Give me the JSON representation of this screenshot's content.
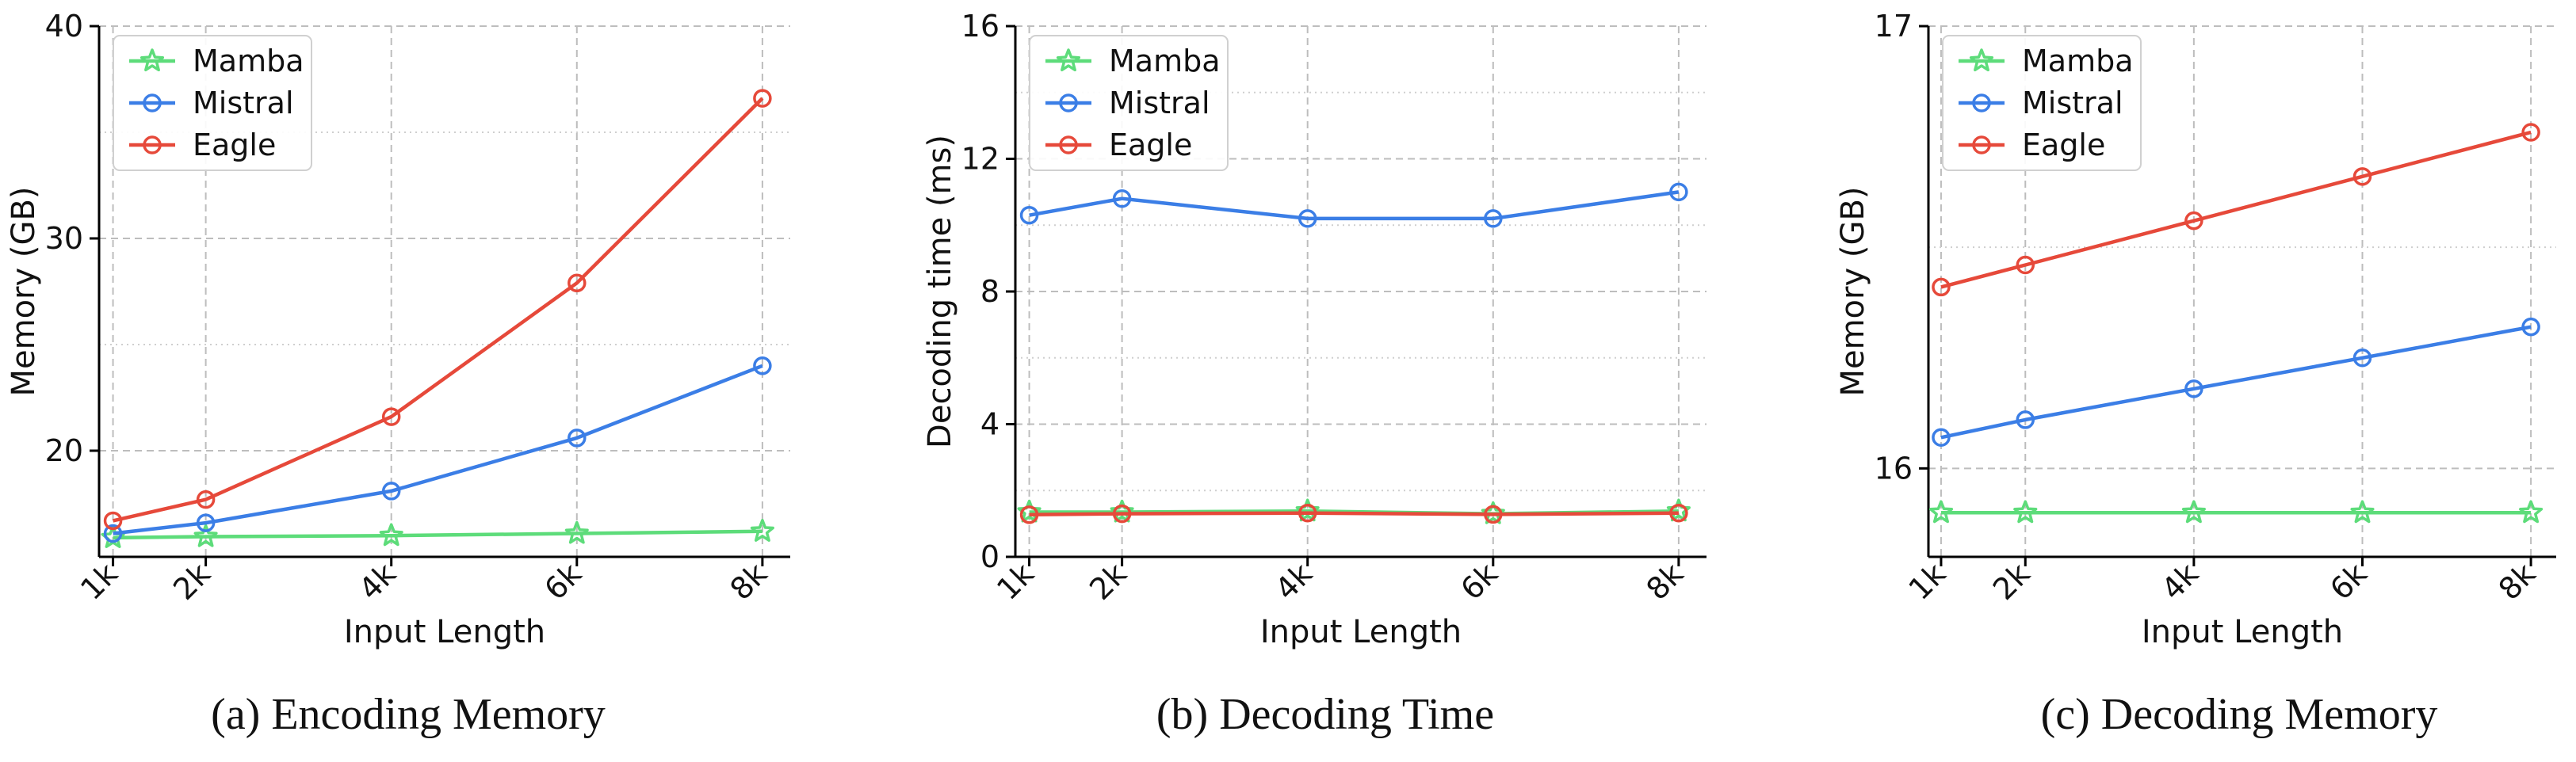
{
  "colors": {
    "Mamba": "#5ddc7a",
    "Mistral": "#3b7ee6",
    "Eagle": "#e6493a"
  },
  "chart_data": [
    {
      "type": "line",
      "caption": "(a) Encoding Memory",
      "xlabel": "Input Length",
      "ylabel": "Memory (GB)",
      "x": [
        1,
        2,
        4,
        6,
        8
      ],
      "x_tick_labels": [
        "1k",
        "2k",
        "4k",
        "6k",
        "8k"
      ],
      "xlim": [
        0.85,
        8.3
      ],
      "ylim": [
        15,
        40
      ],
      "yticks": [
        20,
        30,
        40
      ],
      "y_tick_labels": [
        "20",
        "30",
        "40"
      ],
      "grid": true,
      "legend": "top-left",
      "series": [
        {
          "name": "Mamba",
          "marker": "star",
          "values": [
            15.9,
            15.95,
            16.0,
            16.1,
            16.2
          ]
        },
        {
          "name": "Mistral",
          "marker": "circle",
          "values": [
            16.1,
            16.6,
            18.1,
            20.6,
            24.0
          ]
        },
        {
          "name": "Eagle",
          "marker": "circle",
          "values": [
            16.7,
            17.7,
            21.6,
            27.9,
            36.6
          ]
        }
      ]
    },
    {
      "type": "line",
      "caption": "(b) Decoding Time",
      "xlabel": "Input Length",
      "ylabel": "Decoding time (ms)",
      "x": [
        1,
        2,
        4,
        6,
        8
      ],
      "x_tick_labels": [
        "1k",
        "2k",
        "4k",
        "6k",
        "8k"
      ],
      "xlim": [
        0.85,
        8.3
      ],
      "ylim": [
        0,
        16
      ],
      "yticks": [
        0,
        4,
        8,
        12,
        16
      ],
      "y_tick_labels": [
        "0",
        "4",
        "8",
        "12",
        "16"
      ],
      "grid": true,
      "legend": "top-left",
      "series": [
        {
          "name": "Mamba",
          "marker": "star",
          "values": [
            1.35,
            1.35,
            1.38,
            1.3,
            1.38
          ]
        },
        {
          "name": "Mistral",
          "marker": "circle",
          "values": [
            10.3,
            10.8,
            10.2,
            10.2,
            11.0
          ]
        },
        {
          "name": "Eagle",
          "marker": "circle",
          "values": [
            1.27,
            1.3,
            1.32,
            1.28,
            1.32
          ]
        }
      ]
    },
    {
      "type": "line",
      "caption": "(c) Decoding Memory",
      "xlabel": "Input Length",
      "ylabel": "Memory (GB)",
      "x": [
        1,
        2,
        4,
        6,
        8
      ],
      "x_tick_labels": [
        "1k",
        "2k",
        "4k",
        "6k",
        "8k"
      ],
      "xlim": [
        0.85,
        8.3
      ],
      "ylim": [
        15.8,
        17.0
      ],
      "yticks": [
        16,
        17
      ],
      "y_tick_labels": [
        "16",
        "17"
      ],
      "grid": true,
      "legend": "top-left",
      "series": [
        {
          "name": "Mamba",
          "marker": "star",
          "values": [
            15.9,
            15.9,
            15.9,
            15.9,
            15.9
          ]
        },
        {
          "name": "Mistral",
          "marker": "circle",
          "values": [
            16.07,
            16.11,
            16.18,
            16.25,
            16.32
          ]
        },
        {
          "name": "Eagle",
          "marker": "circle",
          "values": [
            16.41,
            16.46,
            16.56,
            16.66,
            16.76
          ]
        }
      ]
    }
  ]
}
